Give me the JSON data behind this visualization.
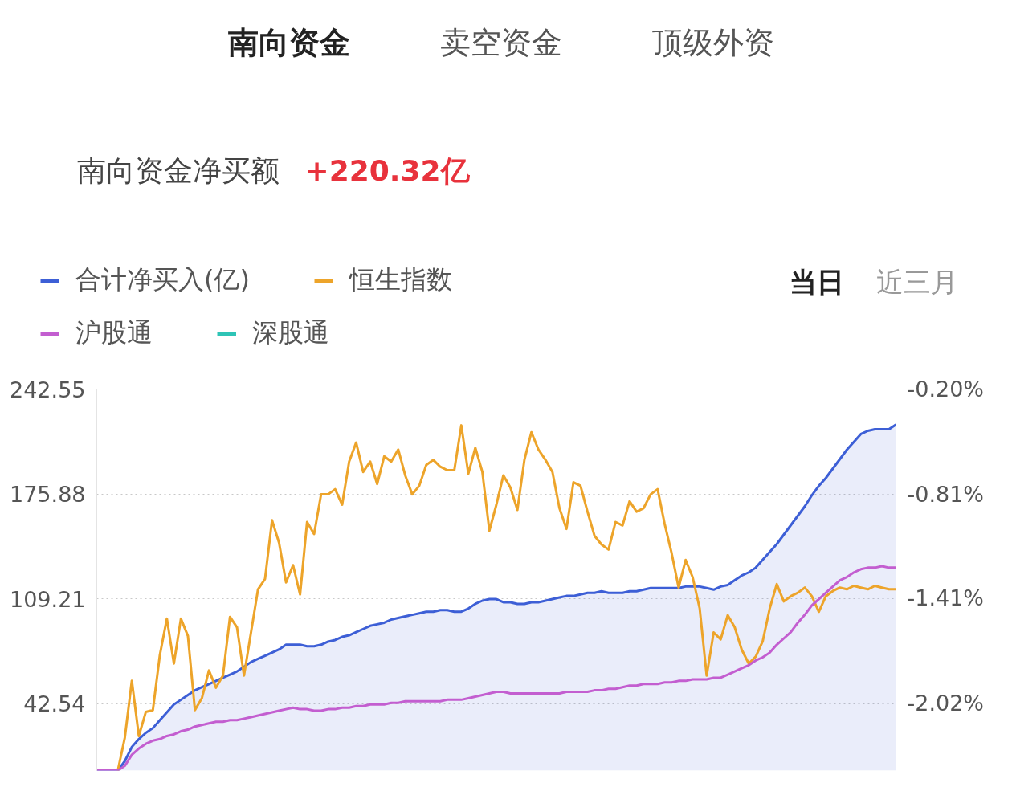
{
  "chart_data": {
    "type": "line",
    "title": "南向资金净买额",
    "subtitle": "+220.32亿",
    "annotations": [
      "南向资金",
      "卖空资金",
      "顶级外资",
      "当日",
      "近三月"
    ],
    "categories": [
      null,
      null,
      null,
      null,
      null,
      null,
      null,
      null,
      null,
      null,
      null,
      null,
      null,
      null,
      null,
      null,
      null,
      null,
      null,
      null,
      null,
      null,
      null,
      null,
      null,
      null,
      null,
      null,
      null,
      null,
      null,
      null,
      null,
      null,
      null,
      null,
      null,
      null,
      null,
      null,
      null,
      null,
      null,
      null,
      null,
      null,
      null,
      null,
      null,
      null,
      null,
      null,
      null,
      null,
      null,
      null,
      null,
      null,
      null,
      null,
      null,
      null,
      null,
      null,
      null,
      null,
      null,
      null,
      null,
      null,
      null,
      null,
      null,
      null,
      null,
      null,
      null,
      null,
      null,
      null,
      null,
      null,
      null,
      null,
      null,
      null,
      null,
      null,
      null,
      null,
      null,
      null,
      null,
      null,
      null,
      null,
      null,
      null,
      null,
      null,
      null,
      null,
      null,
      null,
      null,
      null,
      null,
      null,
      null,
      null,
      null,
      null,
      null,
      null,
      null
    ],
    "ylim": [
      0,
      242.55
    ],
    "yticks": [
      42.54,
      109.21,
      175.88,
      242.55
    ],
    "y2lim": [
      -2.41,
      -0.2
    ],
    "y2ticks": [
      {
        "value": -2.02,
        "label": "-2.02%"
      },
      {
        "value": -1.41,
        "label": "-1.41%"
      },
      {
        "value": -0.81,
        "label": "-0.81%"
      },
      {
        "value": -0.2,
        "label": "-0.20%"
      }
    ],
    "grid": "y",
    "legend": "top left",
    "series": [
      {
        "name": "合计净买入(亿)",
        "type": "area",
        "color": "#3d5fd6",
        "values": [
          0,
          0,
          0,
          0,
          6,
          15,
          20,
          24,
          27,
          32,
          37,
          42,
          45,
          48,
          51,
          53,
          55,
          57,
          59,
          61,
          63,
          66,
          69,
          71,
          73,
          75,
          77,
          80,
          80,
          80,
          79,
          79,
          80,
          82,
          83,
          85,
          86,
          88,
          90,
          92,
          93,
          94,
          96,
          97,
          98,
          99,
          100,
          101,
          101,
          102,
          102,
          101,
          101,
          103,
          106,
          108,
          109,
          109,
          107,
          107,
          106,
          106,
          107,
          107,
          108,
          109,
          110,
          111,
          111,
          112,
          113,
          113,
          114,
          113,
          113,
          113,
          114,
          114,
          115,
          116,
          116,
          116,
          116,
          116,
          117,
          117,
          117,
          116,
          115,
          117,
          118,
          121,
          124,
          126,
          129,
          134,
          139,
          144,
          150,
          156,
          162,
          168,
          175,
          181,
          186,
          192,
          198,
          204,
          209,
          214,
          216,
          217,
          217,
          217,
          220
        ]
      },
      {
        "name": "恒生指数",
        "axis": "y2",
        "color": "#eda42a",
        "values": [
          null,
          null,
          null,
          -2.41,
          -2.22,
          -1.89,
          -2.21,
          -2.07,
          -2.06,
          -1.74,
          -1.53,
          -1.79,
          -1.53,
          -1.63,
          -2.06,
          -1.99,
          -1.83,
          -1.93,
          -1.86,
          -1.52,
          -1.58,
          -1.86,
          -1.61,
          -1.36,
          -1.3,
          -0.96,
          -1.09,
          -1.32,
          -1.22,
          -1.39,
          -0.97,
          -1.04,
          -0.81,
          -0.81,
          -0.78,
          -0.87,
          -0.62,
          -0.51,
          -0.68,
          -0.62,
          -0.75,
          -0.59,
          -0.62,
          -0.55,
          -0.7,
          -0.81,
          -0.76,
          -0.64,
          -0.61,
          -0.65,
          -0.67,
          -0.67,
          -0.41,
          -0.69,
          -0.54,
          -0.68,
          -1.02,
          -0.87,
          -0.7,
          -0.77,
          -0.9,
          -0.61,
          -0.45,
          -0.55,
          -0.61,
          -0.68,
          -0.89,
          -1.01,
          -0.74,
          -0.76,
          -0.91,
          -1.05,
          -1.1,
          -1.13,
          -0.97,
          -0.99,
          -0.85,
          -0.91,
          -0.89,
          -0.81,
          -0.78,
          -0.98,
          -1.15,
          -1.35,
          -1.19,
          -1.29,
          -1.47,
          -1.86,
          -1.61,
          -1.65,
          -1.51,
          -1.58,
          -1.71,
          -1.79,
          -1.75,
          -1.66,
          -1.47,
          -1.33,
          -1.43,
          -1.4,
          -1.38,
          -1.35,
          -1.4,
          -1.49,
          -1.4,
          -1.37,
          -1.35,
          -1.36,
          -1.34,
          -1.35,
          -1.36,
          -1.34,
          -1.35,
          -1.36,
          -1.36
        ]
      },
      {
        "name": "沪股通",
        "color": "#c35ed0",
        "values": [
          0,
          0,
          0,
          0,
          3,
          10,
          14,
          17,
          19,
          20,
          22,
          23,
          25,
          26,
          28,
          29,
          30,
          31,
          31,
          32,
          32,
          33,
          34,
          35,
          36,
          37,
          38,
          39,
          40,
          39,
          39,
          38,
          38,
          39,
          39,
          40,
          40,
          41,
          41,
          42,
          42,
          42,
          43,
          43,
          44,
          44,
          44,
          44,
          44,
          44,
          45,
          45,
          45,
          46,
          47,
          48,
          49,
          50,
          50,
          49,
          49,
          49,
          49,
          49,
          49,
          49,
          49,
          50,
          50,
          50,
          50,
          51,
          51,
          52,
          52,
          53,
          54,
          54,
          55,
          55,
          55,
          56,
          56,
          57,
          57,
          58,
          58,
          58,
          59,
          59,
          61,
          63,
          65,
          67,
          70,
          72,
          75,
          80,
          84,
          88,
          94,
          99,
          105,
          109,
          113,
          117,
          121,
          123,
          126,
          128,
          129,
          129,
          130,
          129,
          129
        ]
      },
      {
        "name": "深股通",
        "color": "#2ec4b6",
        "values": [
          null,
          null,
          null,
          null,
          null,
          null,
          null,
          null,
          null,
          null,
          null,
          null,
          null,
          null,
          null,
          null,
          null,
          null,
          null,
          null,
          null,
          null,
          null,
          null,
          null,
          null,
          null,
          null,
          null,
          null,
          null,
          null,
          null,
          null,
          null,
          null,
          null,
          null,
          null,
          null,
          null,
          null,
          null,
          null,
          null,
          null,
          null,
          null,
          null,
          null,
          null,
          null,
          null,
          null,
          null,
          null,
          null,
          null,
          null,
          null,
          null,
          null,
          null,
          null,
          null,
          null,
          null,
          null,
          null,
          null,
          null,
          null,
          null,
          null,
          null,
          null,
          null,
          null,
          null,
          null,
          null,
          null,
          null,
          null,
          null,
          null,
          null,
          null,
          null,
          null,
          null,
          null,
          null,
          null,
          null,
          null,
          null,
          null,
          null,
          null,
          null,
          null,
          null,
          null,
          null,
          null,
          null,
          null,
          null,
          null,
          null,
          null,
          null,
          null,
          null
        ]
      }
    ]
  }
}
